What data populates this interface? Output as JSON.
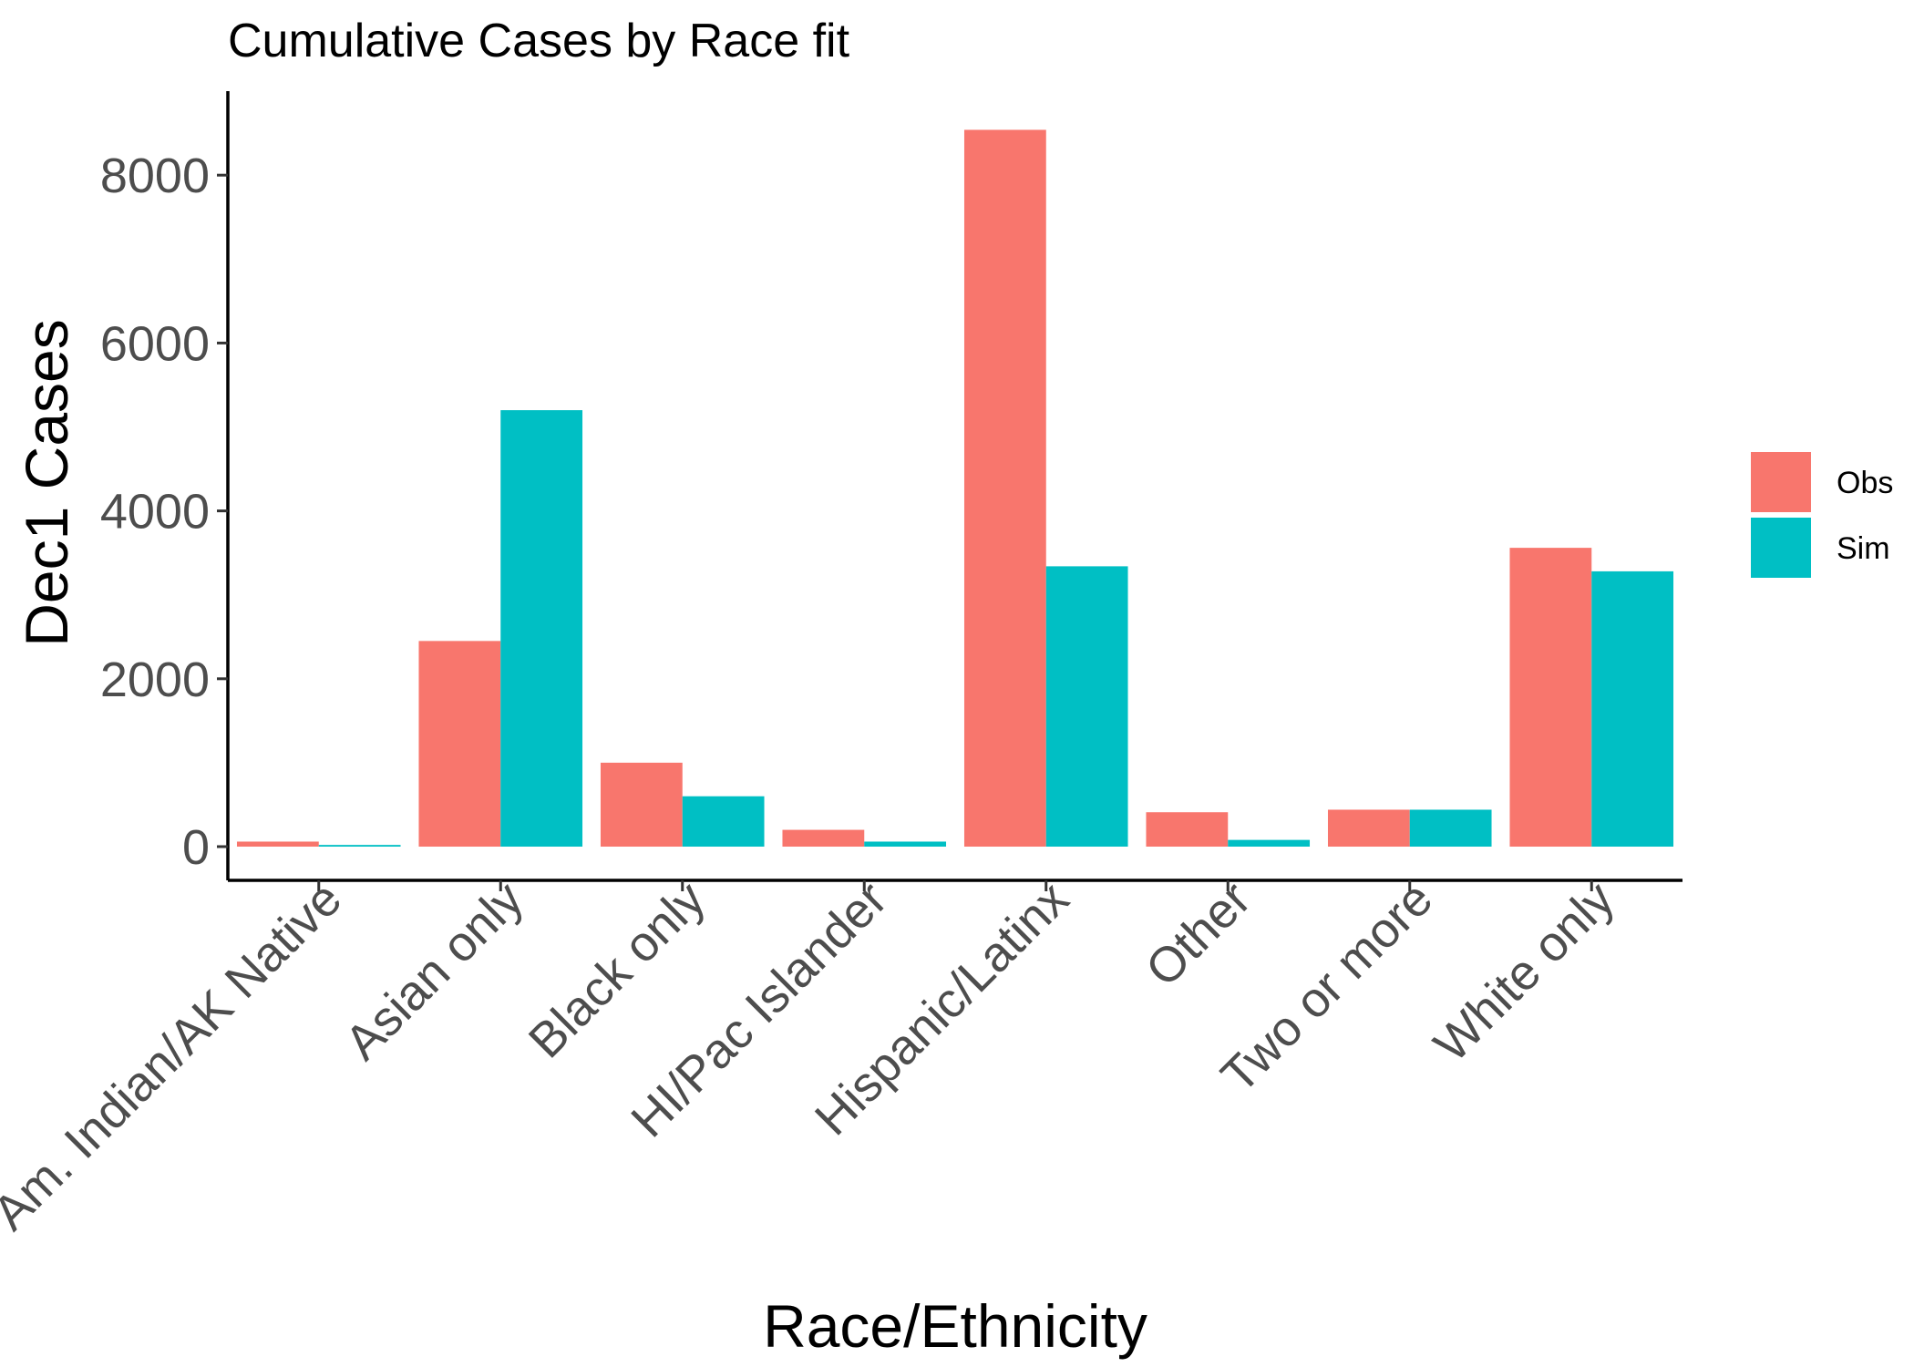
{
  "chart_data": {
    "type": "bar",
    "title": "Cumulative Cases by Race fit",
    "xlabel": "Race/Ethnicity",
    "ylabel": "Dec1 Cases",
    "categories": [
      "Am. Indian/AK Native",
      "Asian only",
      "Black only",
      "HI/Pac Islander",
      "Hispanic/Latinx",
      "Other",
      "Two or more",
      "White only"
    ],
    "series": [
      {
        "name": "Obs",
        "color": "#F8766D",
        "values": [
          60,
          2450,
          1000,
          200,
          8540,
          410,
          440,
          3560
        ]
      },
      {
        "name": "Sim",
        "color": "#00BFC4",
        "values": [
          20,
          5200,
          600,
          60,
          3340,
          80,
          440,
          3280
        ]
      }
    ],
    "ylim": [
      -400,
      9000
    ],
    "yticks": [
      0,
      2000,
      4000,
      6000,
      8000
    ],
    "grid": false,
    "legend_position": "right"
  }
}
